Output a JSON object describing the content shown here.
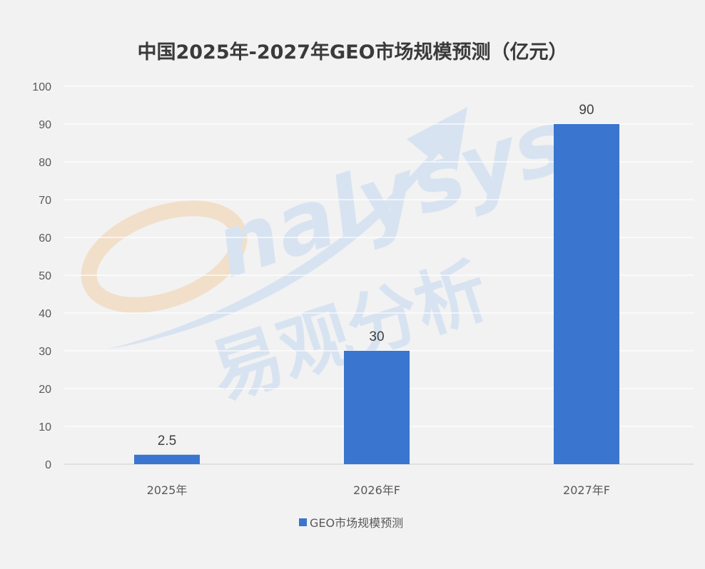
{
  "chart_data": {
    "type": "bar",
    "title": "中国2025年-2027年GEO市场规模预测（亿元）",
    "categories": [
      "2025年",
      "2026年F",
      "2027年F"
    ],
    "series": [
      {
        "name": "GEO市场规模预测",
        "values": [
          2.5,
          30,
          90
        ]
      }
    ],
    "data_labels": [
      "2.5",
      "30",
      "90"
    ],
    "ylim": [
      0,
      100
    ],
    "yticks": [
      0,
      10,
      20,
      30,
      40,
      50,
      60,
      70,
      80,
      90,
      100
    ],
    "grid": true,
    "legend": "bottom",
    "colors": {
      "bar": "#3a75cf",
      "background": "#f2f2f2",
      "grid": "#ffffff"
    }
  },
  "watermark": {
    "logo_text": "nalysys",
    "cn_text": "易观分析"
  }
}
